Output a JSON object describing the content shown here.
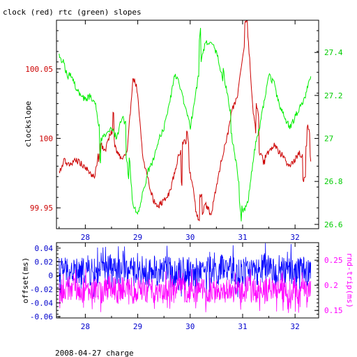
{
  "colors": {
    "clock": "#cc0000",
    "rtc": "#00ee00",
    "offset": "#0000ff",
    "rtt": "#ff00ff",
    "axis": "#000000"
  },
  "chart_data": [
    {
      "type": "line",
      "title": "clock (red) rtc (green) slopes",
      "ylabel": "clockslope",
      "xlim": [
        27.45,
        32.45
      ],
      "ylim_left": [
        99.935,
        100.085
      ],
      "ylim_right": [
        26.58,
        27.55
      ],
      "x_ticks": [
        "28",
        "29",
        "30",
        "31",
        "32"
      ],
      "y_ticks_left": [
        "99.95",
        "100",
        "100.05"
      ],
      "y_ticks_right": [
        "26.6",
        "26.8",
        "27",
        "27.2",
        "27.4"
      ],
      "series": [
        {
          "name": "clock",
          "axis": "left",
          "x": [
            27.5,
            27.6,
            27.7,
            27.8,
            27.9,
            28.0,
            28.1,
            28.2,
            28.3,
            28.4,
            28.5,
            28.6,
            28.7,
            28.8,
            28.9,
            29.0,
            29.1,
            29.2,
            29.3,
            29.4,
            29.5,
            29.6,
            29.7,
            29.8,
            29.9,
            30.0,
            30.1,
            30.2,
            30.3,
            30.4,
            30.5,
            30.6,
            30.7,
            30.8,
            30.9,
            31.0,
            31.1,
            31.2,
            31.3,
            31.4,
            31.5,
            31.6,
            31.7,
            31.8,
            31.9,
            32.0,
            32.1,
            32.2,
            32.3
          ],
          "values": [
            99.975,
            99.985,
            99.98,
            99.985,
            99.982,
            99.98,
            99.975,
            99.97,
            99.998,
            99.995,
            100.005,
            99.99,
            99.985,
            99.99,
            100.04,
            100.03,
            99.985,
            99.97,
            99.955,
            99.952,
            99.955,
            99.96,
            99.975,
            99.99,
            100.0,
            99.975,
            99.955,
            99.945,
            99.952,
            99.945,
            99.965,
            99.985,
            100.0,
            100.02,
            100.03,
            100.06,
            100.075,
            100.02,
            99.99,
            99.985,
            99.99,
            99.995,
            99.99,
            99.985,
            99.98,
            99.985,
            99.99,
            99.995,
            99.985
          ]
        },
        {
          "name": "rtc",
          "axis": "right",
          "x": [
            27.5,
            27.6,
            27.7,
            27.8,
            27.9,
            28.0,
            28.1,
            28.2,
            28.3,
            28.4,
            28.5,
            28.6,
            28.7,
            28.8,
            28.9,
            29.0,
            29.1,
            29.2,
            29.3,
            29.4,
            29.5,
            29.6,
            29.7,
            29.8,
            29.9,
            30.0,
            30.1,
            30.2,
            30.3,
            30.4,
            30.5,
            30.6,
            30.7,
            30.8,
            30.9,
            31.0,
            31.1,
            31.2,
            31.3,
            31.4,
            31.5,
            31.6,
            31.7,
            31.8,
            31.9,
            32.0,
            32.1,
            32.2,
            32.3
          ],
          "values": [
            27.38,
            27.35,
            27.3,
            27.25,
            27.2,
            27.18,
            27.2,
            27.15,
            27.0,
            27.02,
            27.05,
            27.0,
            27.1,
            27.05,
            26.7,
            26.65,
            26.75,
            26.85,
            26.9,
            27.0,
            27.05,
            27.15,
            27.3,
            27.25,
            27.15,
            27.05,
            27.2,
            27.35,
            27.45,
            27.45,
            27.4,
            27.3,
            27.15,
            27.0,
            26.85,
            26.65,
            26.7,
            26.9,
            27.05,
            27.15,
            27.3,
            27.25,
            27.15,
            27.1,
            27.05,
            27.1,
            27.15,
            27.2,
            27.3
          ]
        }
      ]
    },
    {
      "type": "line",
      "ylabel_left": "offset(ms)",
      "ylabel_right": "rnd-trip(ms)",
      "xlim": [
        27.45,
        32.45
      ],
      "ylim_left": [
        -0.062,
        0.048
      ],
      "ylim_right": [
        0.135,
        0.285
      ],
      "x_ticks": [
        "28",
        "29",
        "30",
        "31",
        "32"
      ],
      "y_ticks_left": [
        "-0.06",
        "-0.04",
        "-0.02",
        "0",
        "0.02",
        "0.04"
      ],
      "y_ticks_right": [
        "0.15",
        "0.2",
        "0.25"
      ],
      "series": [
        {
          "name": "offset",
          "axis": "left",
          "x": [
            27.5,
            27.6,
            27.7,
            27.8,
            27.9,
            28.0,
            28.1,
            28.2,
            28.3,
            28.4,
            28.5,
            28.6,
            28.7,
            28.8,
            28.9,
            29.0,
            29.1,
            29.2,
            29.3,
            29.4,
            29.5,
            29.6,
            29.7,
            29.8,
            29.9,
            30.0,
            30.1,
            30.2,
            30.3,
            30.4,
            30.5,
            30.6,
            30.7,
            30.8,
            30.9,
            31.0,
            31.1,
            31.2,
            31.3,
            31.4,
            31.5,
            31.6,
            31.7,
            31.8,
            31.9,
            32.0,
            32.1,
            32.2,
            32.3
          ],
          "values": [
            0.005,
            0.01,
            0.002,
            0.008,
            0.0,
            0.01,
            0.005,
            0.002,
            0.012,
            0.004,
            0.015,
            0.005,
            0.006,
            0.01,
            0.003,
            0.012,
            0.006,
            0.002,
            0.008,
            0.004,
            0.01,
            0.006,
            0.0,
            0.01,
            0.004,
            0.006,
            0.002,
            0.012,
            0.005,
            0.008,
            0.003,
            0.01,
            0.005,
            0.008,
            0.0,
            0.005,
            0.01,
            0.006,
            0.002,
            0.012,
            0.004,
            0.006,
            0.01,
            0.003,
            0.008,
            0.002,
            0.012,
            0.005,
            0.008
          ]
        },
        {
          "name": "rtt",
          "axis": "right",
          "x": [
            27.5,
            27.6,
            27.7,
            27.8,
            27.9,
            28.0,
            28.1,
            28.2,
            28.3,
            28.4,
            28.5,
            28.6,
            28.7,
            28.8,
            28.9,
            29.0,
            29.1,
            29.2,
            29.3,
            29.4,
            29.5,
            29.6,
            29.7,
            29.8,
            29.9,
            30.0,
            30.1,
            30.2,
            30.3,
            30.4,
            30.5,
            30.6,
            30.7,
            30.8,
            30.9,
            31.0,
            31.1,
            31.2,
            31.3,
            31.4,
            31.5,
            31.6,
            31.7,
            31.8,
            31.9,
            32.0,
            32.1,
            32.2,
            32.3
          ],
          "values": [
            0.19,
            0.185,
            0.195,
            0.19,
            0.188,
            0.192,
            0.186,
            0.19,
            0.185,
            0.19,
            0.2,
            0.188,
            0.192,
            0.19,
            0.186,
            0.195,
            0.19,
            0.188,
            0.19,
            0.192,
            0.186,
            0.19,
            0.188,
            0.195,
            0.19,
            0.186,
            0.192,
            0.188,
            0.19,
            0.186,
            0.19,
            0.192,
            0.188,
            0.19,
            0.186,
            0.19,
            0.195,
            0.188,
            0.19,
            0.186,
            0.192,
            0.19,
            0.188,
            0.19,
            0.186,
            0.192,
            0.188,
            0.19,
            0.19
          ]
        }
      ]
    }
  ],
  "footer": "2008-04-27 charge"
}
